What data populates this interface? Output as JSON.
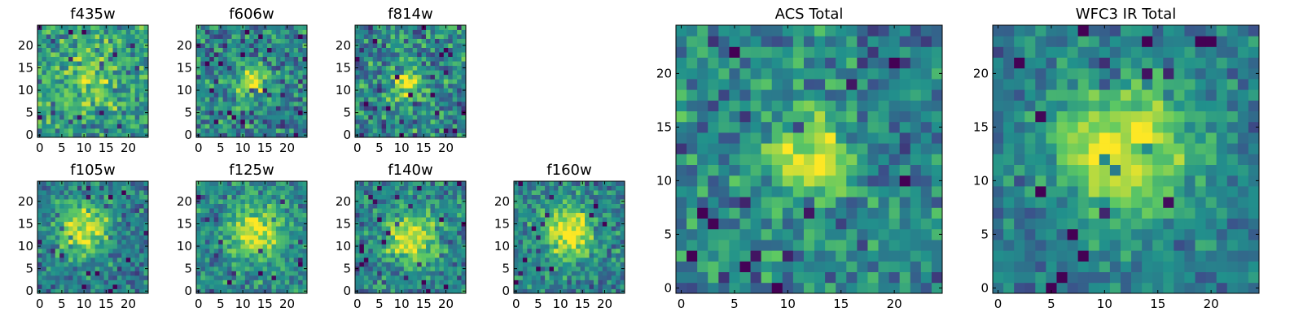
{
  "figure": {
    "colormap": [
      "#440154",
      "#3b528b",
      "#21918c",
      "#5ec962",
      "#fde725"
    ]
  },
  "chart_data": [
    {
      "id": "f435w",
      "type": "heatmap",
      "title": "f435w",
      "grid_size": [
        25,
        25
      ],
      "peak": [
        11,
        13
      ],
      "sigma": 4.5,
      "amp": 0.25,
      "noise": 0.22,
      "base": 0.55,
      "seed": 11,
      "xticks": [
        0,
        5,
        10,
        15,
        20
      ],
      "yticks": [
        0,
        5,
        10,
        15,
        20
      ],
      "xlim": [
        -0.5,
        24.5
      ],
      "ylim": [
        -0.5,
        24.5
      ],
      "grid": false
    },
    {
      "id": "f606w",
      "type": "heatmap",
      "title": "f606w",
      "grid_size": [
        25,
        25
      ],
      "peak": [
        12,
        12
      ],
      "sigma": 2.8,
      "amp": 0.45,
      "noise": 0.22,
      "base": 0.45,
      "seed": 23,
      "xticks": [
        0,
        5,
        10,
        15,
        20
      ],
      "yticks": [
        0,
        5,
        10,
        15,
        20
      ],
      "xlim": [
        -0.5,
        24.5
      ],
      "ylim": [
        -0.5,
        24.5
      ],
      "grid": false
    },
    {
      "id": "f814w",
      "type": "heatmap",
      "title": "f814w",
      "grid_size": [
        25,
        25
      ],
      "peak": [
        11,
        12
      ],
      "sigma": 2.8,
      "amp": 0.45,
      "noise": 0.24,
      "base": 0.45,
      "seed": 37,
      "xticks": [
        0,
        5,
        10,
        15,
        20
      ],
      "yticks": [
        0,
        5,
        10,
        15,
        20
      ],
      "xlim": [
        -0.5,
        24.5
      ],
      "ylim": [
        -0.5,
        24.5
      ],
      "grid": false
    },
    {
      "id": "f105w",
      "type": "heatmap",
      "title": "f105w",
      "grid_size": [
        25,
        25
      ],
      "peak": [
        10,
        14
      ],
      "sigma": 4.0,
      "amp": 0.55,
      "noise": 0.18,
      "base": 0.42,
      "seed": 41,
      "xticks": [
        0,
        5,
        10,
        15,
        20
      ],
      "yticks": [
        0,
        5,
        10,
        15,
        20
      ],
      "xlim": [
        -0.5,
        24.5
      ],
      "ylim": [
        -0.5,
        24.5
      ],
      "grid": false
    },
    {
      "id": "f125w",
      "type": "heatmap",
      "title": "f125w",
      "grid_size": [
        25,
        25
      ],
      "peak": [
        13,
        13
      ],
      "sigma": 4.0,
      "amp": 0.5,
      "noise": 0.18,
      "base": 0.48,
      "seed": 53,
      "xticks": [
        0,
        5,
        10,
        15,
        20
      ],
      "yticks": [
        0,
        5,
        10,
        15,
        20
      ],
      "xlim": [
        -0.5,
        24.5
      ],
      "ylim": [
        -0.5,
        24.5
      ],
      "grid": false
    },
    {
      "id": "f140w",
      "type": "heatmap",
      "title": "f140w",
      "grid_size": [
        25,
        25
      ],
      "peak": [
        12,
        12
      ],
      "sigma": 4.0,
      "amp": 0.55,
      "noise": 0.18,
      "base": 0.45,
      "seed": 67,
      "xticks": [
        0,
        5,
        10,
        15,
        20
      ],
      "yticks": [
        0,
        5,
        10,
        15,
        20
      ],
      "xlim": [
        -0.5,
        24.5
      ],
      "ylim": [
        -0.5,
        24.5
      ],
      "grid": false
    },
    {
      "id": "f160w",
      "type": "heatmap",
      "title": "f160w",
      "grid_size": [
        25,
        25
      ],
      "peak": [
        12,
        13
      ],
      "sigma": 4.0,
      "amp": 0.55,
      "noise": 0.18,
      "base": 0.45,
      "seed": 79,
      "xticks": [
        0,
        5,
        10,
        15,
        20
      ],
      "yticks": [
        0,
        5,
        10,
        15,
        20
      ],
      "xlim": [
        -0.5,
        24.5
      ],
      "ylim": [
        -0.5,
        24.5
      ],
      "grid": false
    },
    {
      "id": "acs_total",
      "type": "heatmap",
      "title": "ACS Total",
      "grid_size": [
        25,
        25
      ],
      "peak": [
        12,
        12
      ],
      "sigma": 2.6,
      "amp": 0.55,
      "noise": 0.2,
      "base": 0.45,
      "seed": 97,
      "xticks": [
        0,
        5,
        10,
        15,
        20
      ],
      "yticks": [
        0,
        5,
        10,
        15,
        20
      ],
      "xlim": [
        -0.5,
        24.5
      ],
      "ylim": [
        -0.5,
        24.5
      ],
      "grid": false
    },
    {
      "id": "wfc3_ir_total",
      "type": "heatmap",
      "title": "WFC3 IR Total",
      "grid_size": [
        25,
        25
      ],
      "peak": [
        12,
        13
      ],
      "sigma": 4.2,
      "amp": 0.6,
      "noise": 0.14,
      "base": 0.42,
      "seed": 113,
      "xticks": [
        0,
        5,
        10,
        15,
        20
      ],
      "yticks": [
        0,
        5,
        10,
        15,
        20
      ],
      "xlim": [
        -0.5,
        24.5
      ],
      "ylim": [
        -0.5,
        24.5
      ],
      "grid": false
    }
  ]
}
